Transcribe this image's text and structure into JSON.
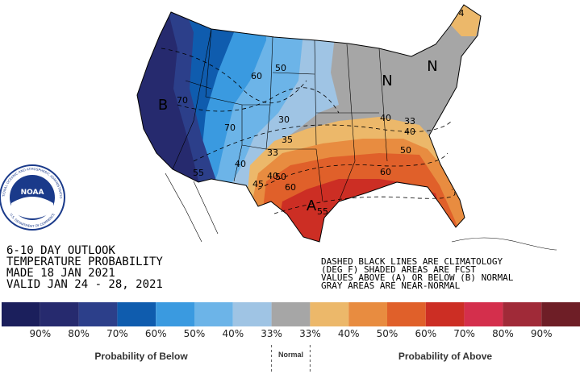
{
  "outlook": {
    "title_lines": [
      "6-10 DAY OUTLOOK",
      "TEMPERATURE PROBABILITY",
      "MADE  18 JAN 2021",
      "VALID  JAN 24 - 28, 2021"
    ],
    "note_lines": [
      "DASHED BLACK LINES ARE CLIMATOLOGY",
      "(DEG F) SHADED AREAS ARE FCST",
      "VALUES ABOVE (A) OR BELOW (B) NORMAL",
      "GRAY AREAS ARE NEAR-NORMAL"
    ],
    "logo": {
      "name": "NOAA",
      "ring_top": "NATIONAL OCEANIC AND ATMOSPHERIC ADMINISTRATION",
      "ring_bottom": "U.S. DEPARTMENT OF COMMERCE"
    },
    "map_labels": [
      "B",
      "70",
      "70",
      "60",
      "50",
      "40",
      "30",
      "55",
      "40",
      "45",
      "33",
      "35",
      "40",
      "50",
      "60",
      "55",
      "A",
      "33",
      "40",
      "50",
      "60",
      "N",
      "N",
      "4"
    ],
    "legend": {
      "colors": [
        "#1b1f5c",
        "#262a6e",
        "#2c3f8a",
        "#0f5cae",
        "#3a9ae0",
        "#6cb4e8",
        "#9fc4e4",
        "#a6a6a6",
        "#ecb86a",
        "#e88c40",
        "#e0602a",
        "#cc2e24",
        "#d42f4c",
        "#a02a38",
        "#6e1e26"
      ],
      "labels": [
        "90%",
        "80%",
        "70%",
        "60%",
        "50%",
        "40%",
        "33%",
        "33%",
        "40%",
        "50%",
        "60%",
        "70%",
        "80%",
        "90%"
      ],
      "below": "Probability of Below",
      "normal": "Normal",
      "above": "Probability of Above"
    }
  }
}
